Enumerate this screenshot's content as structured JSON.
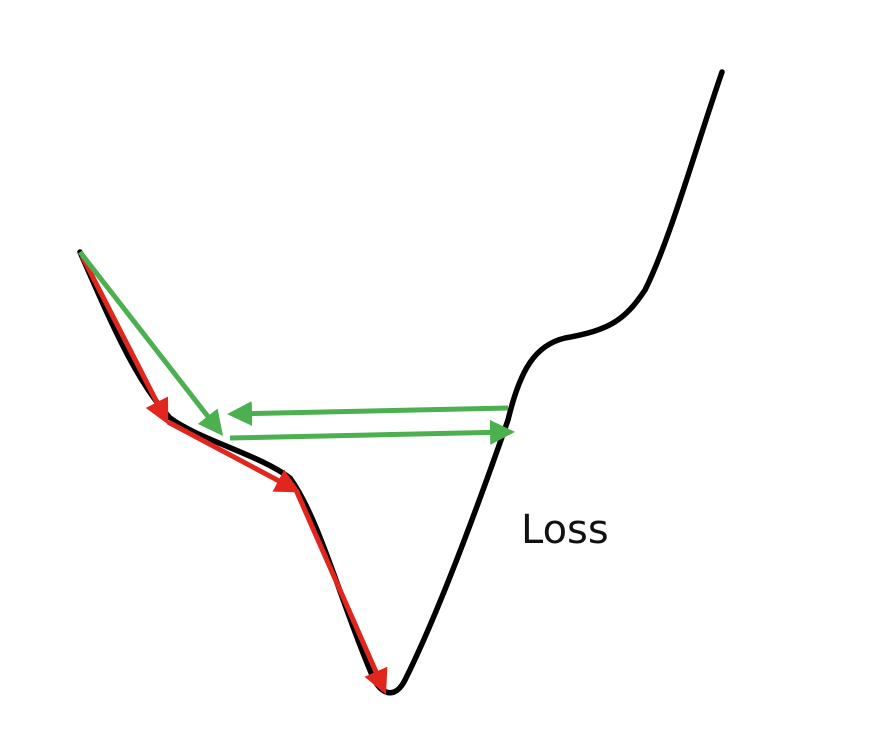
{
  "diagram": {
    "curve_label": "Loss",
    "colors": {
      "background": "#ffffff",
      "curve": "#000000",
      "small_step_arrows": "#e0261d",
      "large_step_arrows": "#4caf50"
    }
  }
}
